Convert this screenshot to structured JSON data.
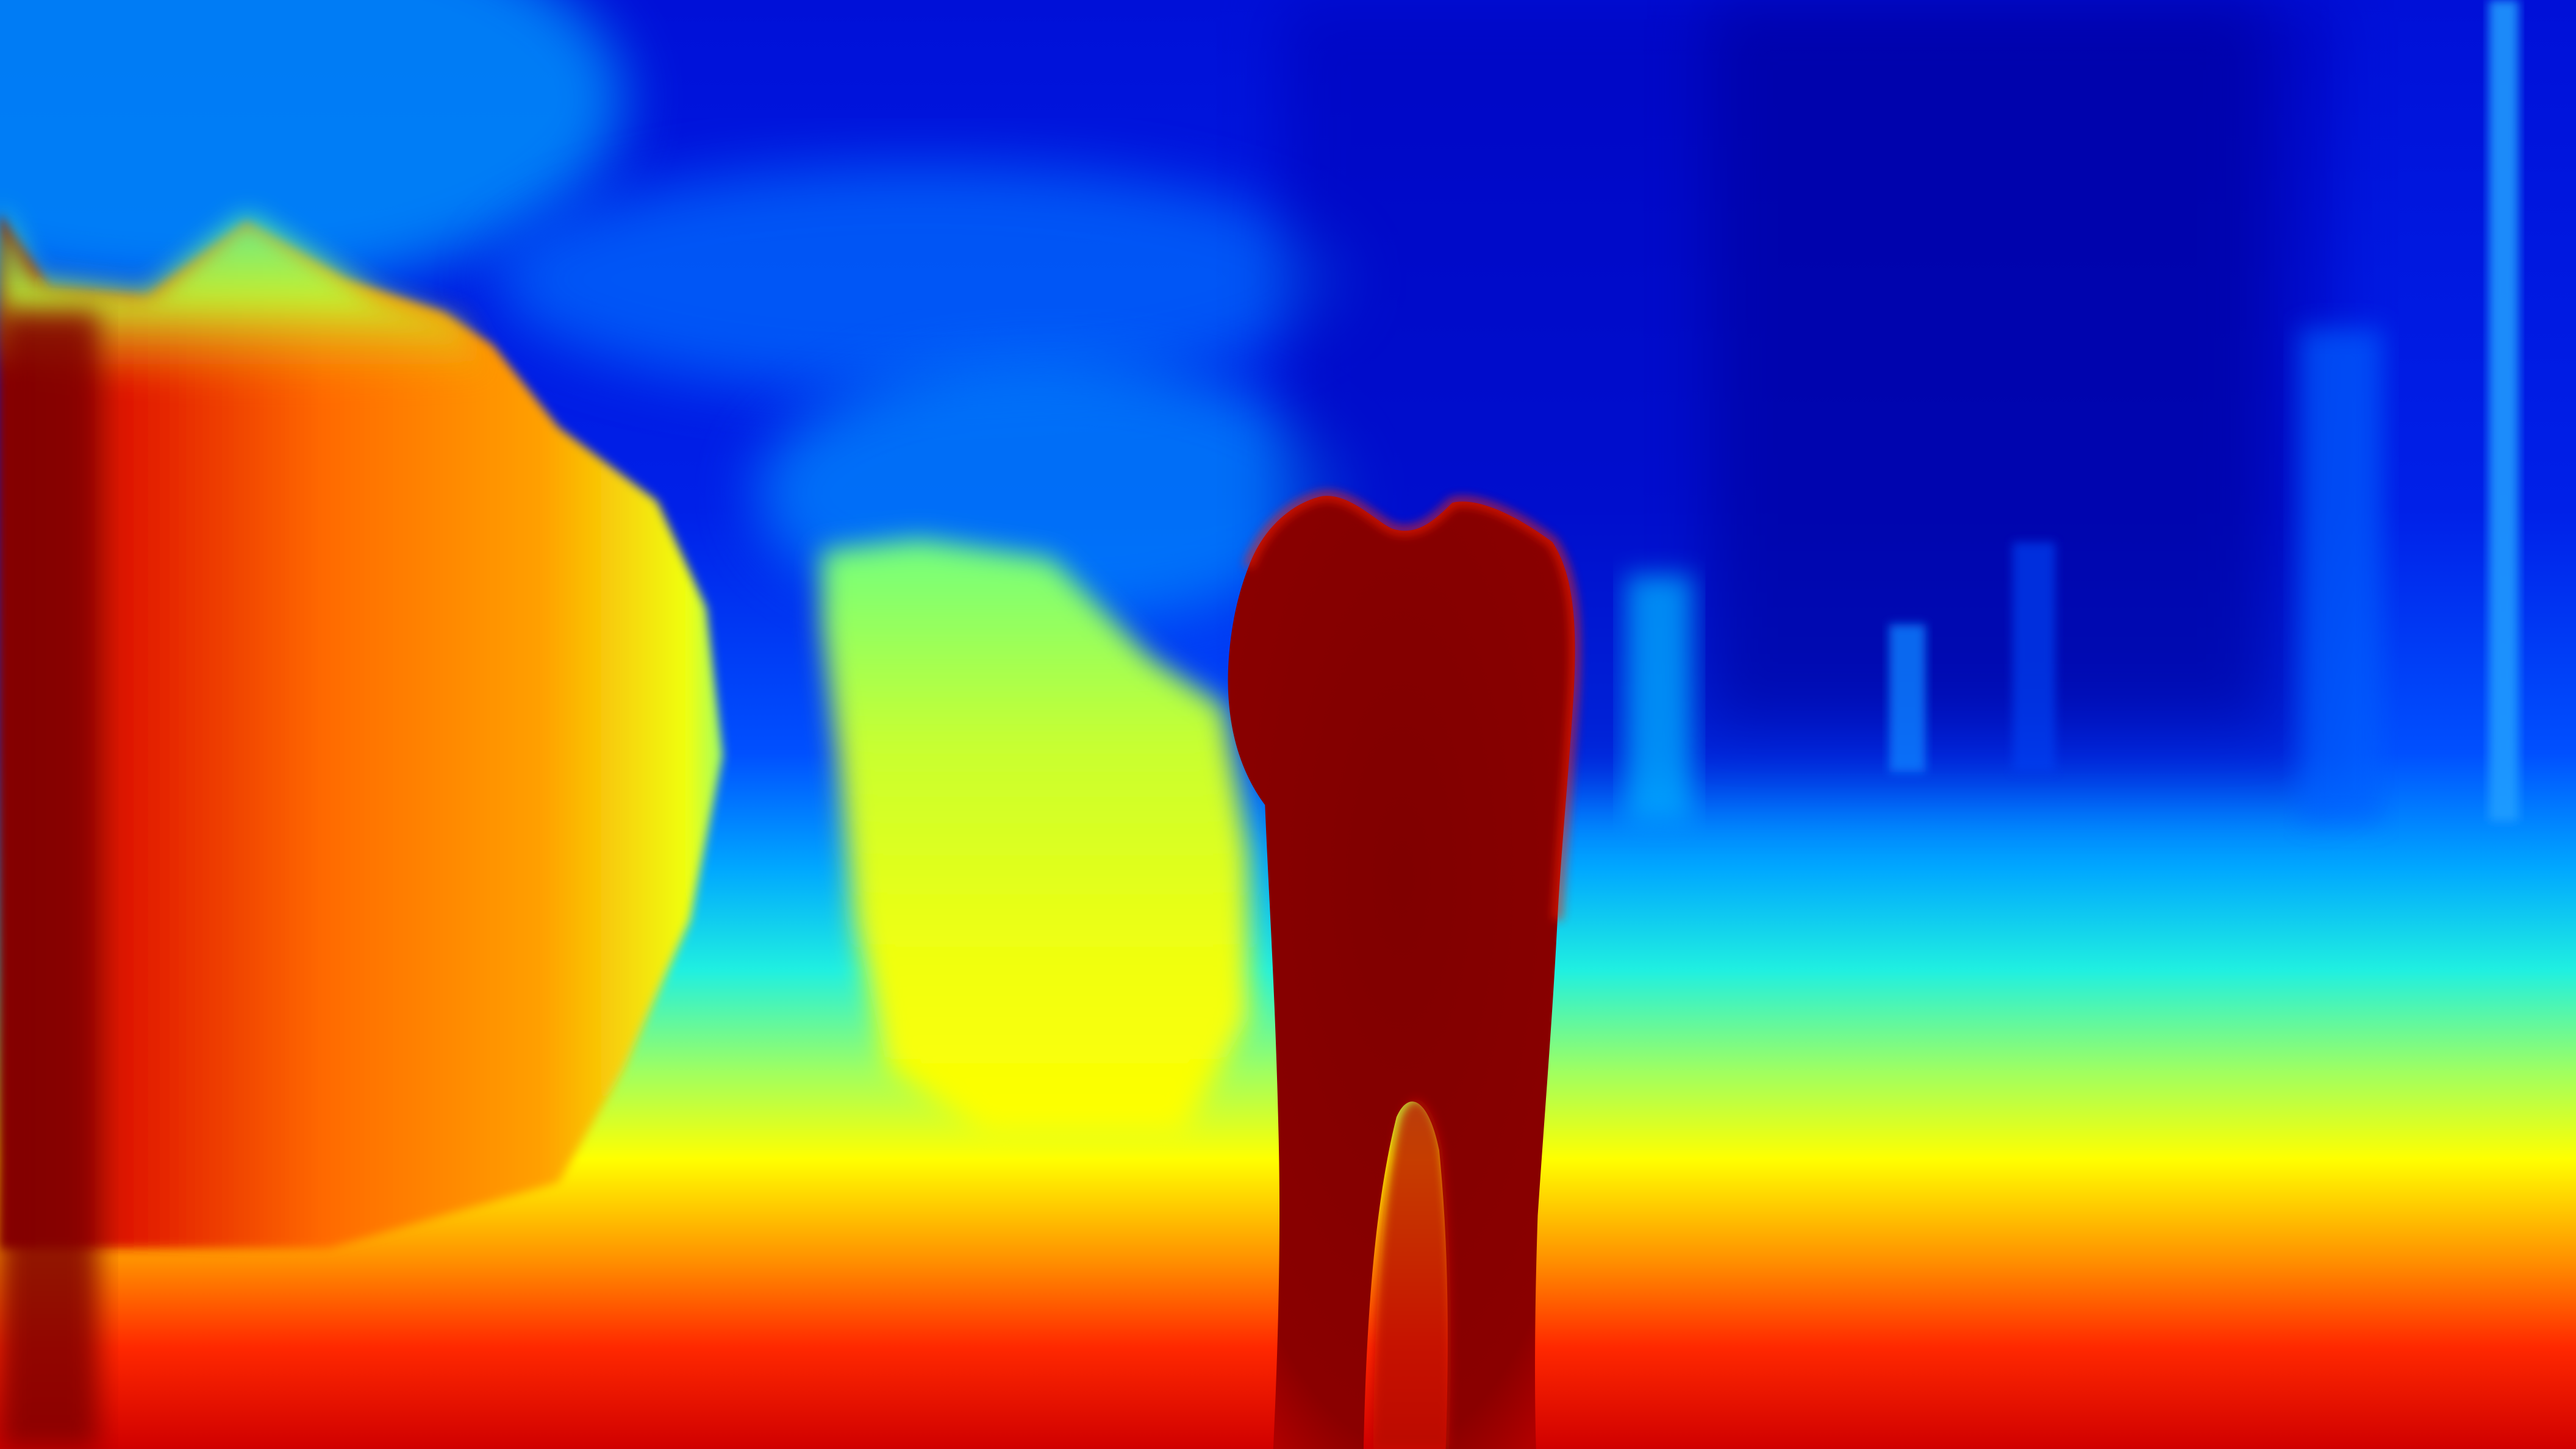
{
  "image": {
    "kind": "depth-map",
    "colormap": "jet",
    "colormap_stops": [
      "#00008f",
      "#0000ff",
      "#00a0ff",
      "#00ffff",
      "#80ff80",
      "#ffff00",
      "#ff8000",
      "#ff0000",
      "#800000"
    ],
    "near_color": "#800000",
    "far_color": "#00008f",
    "regions": [
      {
        "name": "sky-background",
        "color": "#0022dd"
      },
      {
        "name": "left-rock-formation",
        "color": "#ff6a00"
      },
      {
        "name": "middle-rock-formation",
        "color": "#e8ff20"
      },
      {
        "name": "foreground-figure",
        "color": "#800000"
      },
      {
        "name": "ground-plane",
        "color": "#ff2000"
      },
      {
        "name": "right-distant-pillars",
        "color": "#0010c0"
      }
    ]
  }
}
